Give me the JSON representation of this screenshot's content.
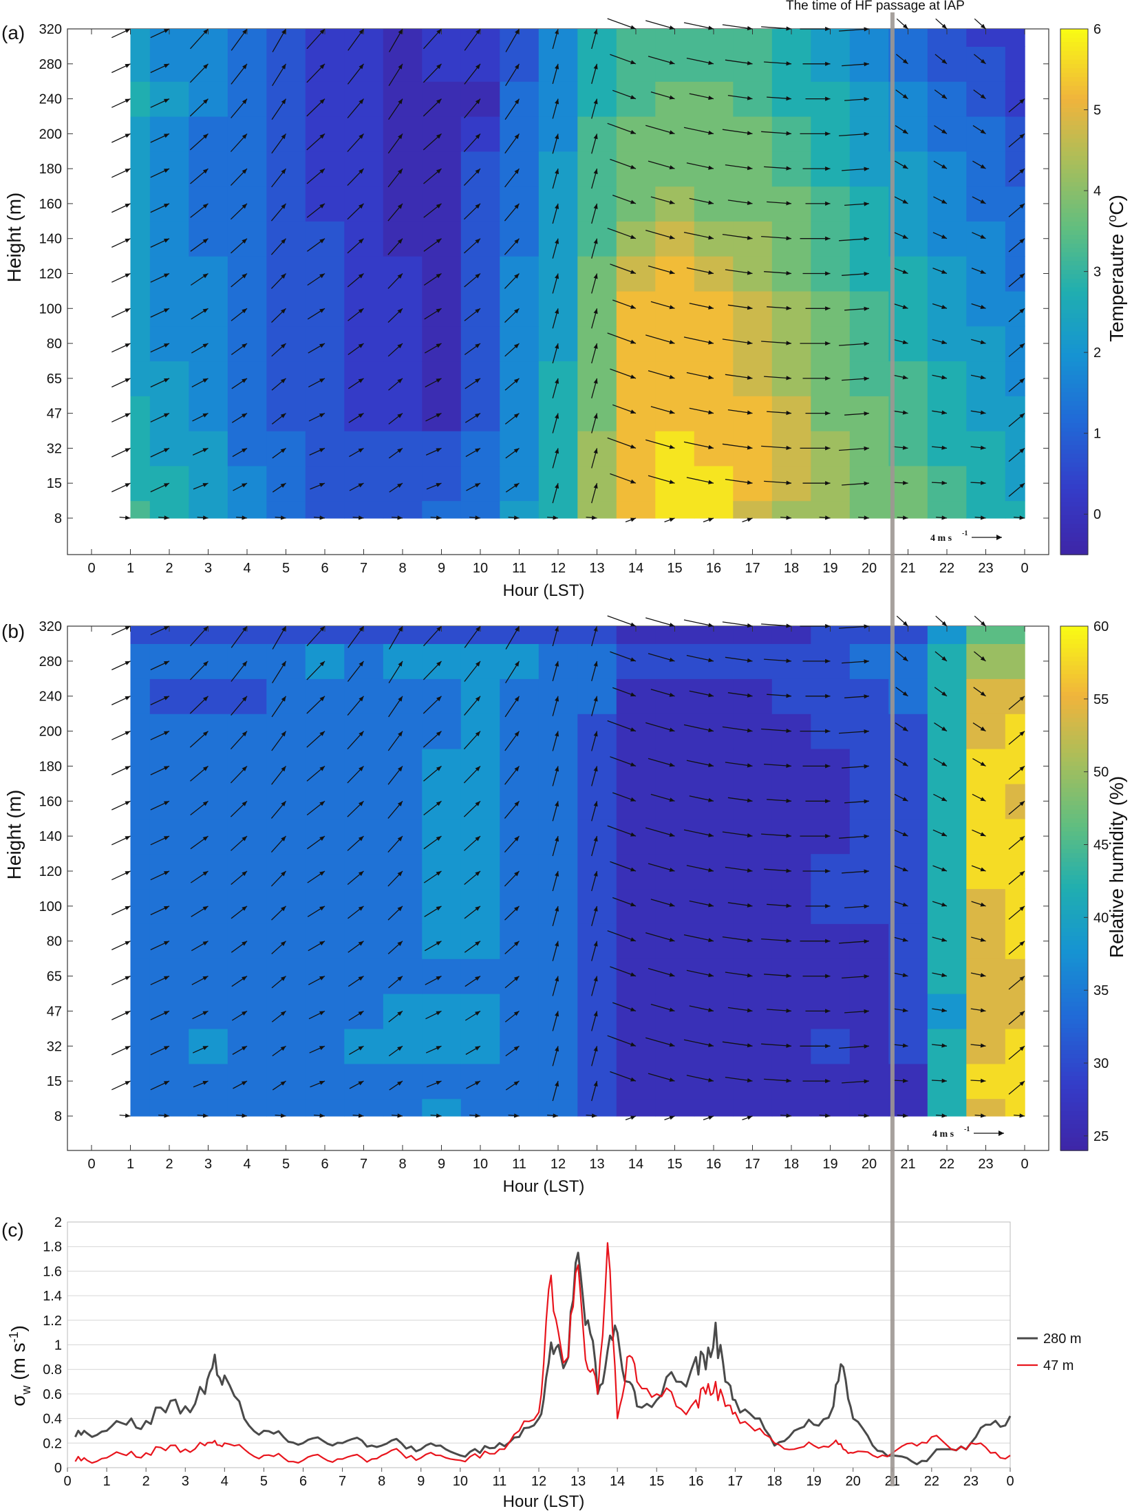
{
  "annotation": {
    "label": "The time of HF passage at IAP",
    "x_hour": 20.6
  },
  "wind_scale": {
    "label": "4 m s",
    "sup": "-1"
  },
  "panel_a": {
    "tag": "(a)",
    "xlabel": "Hour  (LST)",
    "ylabel": "Height (m)",
    "colorbar_label": "Temperautre (",
    "colorbar_label_sup": "o",
    "colorbar_label_end": "C)",
    "colorbar_ticks": [
      "6",
      "5",
      "4",
      "3",
      "2",
      "1",
      "0"
    ]
  },
  "panel_b": {
    "tag": "(b)",
    "xlabel": "Hour  (LST)",
    "ylabel": "Height (m)",
    "colorbar_label": "Relative humidity (%)",
    "colorbar_ticks": [
      "60",
      "55",
      "50",
      "45",
      "40",
      "35",
      "30",
      "25"
    ]
  },
  "panel_c": {
    "tag": "(c)",
    "xlabel": "Hour  (LST)",
    "ylabel_main": "σ",
    "ylabel_sub": "w",
    "ylabel_units": " (m s",
    "ylabel_sup": "-1",
    "ylabel_end": ")"
  },
  "chart_data": [
    {
      "type": "heatmap",
      "title": "",
      "variable": "Temperature (oC)",
      "xlabel": "Hour  (LST)",
      "ylabel": "Height (m)",
      "x_ticks": [
        "0",
        "1",
        "2",
        "3",
        "4",
        "5",
        "6",
        "7",
        "8",
        "9",
        "10",
        "11",
        "12",
        "13",
        "14",
        "15",
        "16",
        "17",
        "18",
        "19",
        "20",
        "21",
        "22",
        "23",
        "0"
      ],
      "y_ticks": [
        "8",
        "15",
        "32",
        "47",
        "65",
        "80",
        "100",
        "120",
        "140",
        "160",
        "180",
        "200",
        "240",
        "280",
        "320"
      ],
      "colorbar_range": [
        -0.5,
        6
      ],
      "hours": [
        1,
        2,
        3,
        4,
        5,
        6,
        7,
        8,
        9,
        10,
        11,
        12,
        13,
        14,
        15,
        16,
        17,
        18,
        19,
        20,
        21,
        22,
        23,
        24
      ],
      "heights": [
        "8",
        "15",
        "32",
        "47",
        "65",
        "80",
        "100",
        "120",
        "140",
        "160",
        "180",
        "200",
        "240",
        "280",
        "320"
      ],
      "values": [
        [
          3.0,
          2.7,
          2.1,
          1.6,
          1.1,
          0.8,
          0.7,
          0.8,
          1.0,
          1.4,
          2.0,
          2.9,
          4.3,
          5.4,
          5.6,
          5.5,
          4.9,
          4.4,
          4.1,
          3.8,
          3.5,
          3.1,
          2.8,
          2.5
        ],
        [
          2.8,
          2.5,
          2.0,
          1.5,
          1.0,
          0.6,
          0.5,
          0.7,
          0.9,
          1.3,
          1.9,
          2.8,
          4.1,
          5.4,
          5.7,
          5.6,
          5.1,
          4.5,
          4.1,
          3.8,
          3.5,
          3.0,
          2.7,
          2.4
        ],
        [
          2.7,
          2.4,
          2.0,
          1.4,
          1.0,
          0.6,
          0.5,
          0.6,
          0.8,
          1.2,
          1.8,
          2.7,
          4.0,
          5.3,
          5.5,
          5.4,
          5.2,
          4.5,
          4.0,
          3.7,
          3.4,
          2.9,
          2.6,
          2.3
        ],
        [
          2.5,
          2.2,
          1.8,
          1.3,
          0.9,
          0.6,
          0.4,
          0.1,
          -0.1,
          0.9,
          1.7,
          2.6,
          3.9,
          5.2,
          5.4,
          5.3,
          5.2,
          4.5,
          3.9,
          3.5,
          3.2,
          2.8,
          2.4,
          2.1
        ],
        [
          2.4,
          2.0,
          1.7,
          1.2,
          0.8,
          0.6,
          0.4,
          0.1,
          -0.1,
          0.9,
          1.6,
          2.5,
          3.8,
          5.1,
          5.3,
          5.2,
          4.9,
          4.4,
          3.8,
          3.4,
          3.0,
          2.6,
          2.2,
          1.9
        ],
        [
          2.3,
          1.9,
          1.6,
          1.1,
          0.8,
          0.6,
          0.4,
          0.0,
          -0.1,
          0.9,
          1.6,
          2.4,
          3.7,
          5.0,
          5.2,
          5.1,
          4.7,
          4.2,
          3.7,
          3.3,
          2.9,
          2.4,
          2.0,
          1.7
        ],
        [
          2.2,
          1.9,
          1.5,
          1.1,
          0.8,
          0.6,
          0.4,
          0.0,
          -0.1,
          0.9,
          1.5,
          2.4,
          3.6,
          5.0,
          5.1,
          5.0,
          4.6,
          4.0,
          3.6,
          3.1,
          2.8,
          2.2,
          1.8,
          1.5
        ],
        [
          2.2,
          1.8,
          1.5,
          1.0,
          0.7,
          0.5,
          0.3,
          0.0,
          -0.1,
          0.8,
          1.5,
          2.3,
          3.5,
          4.9,
          5.0,
          4.9,
          4.4,
          3.9,
          3.4,
          2.9,
          2.6,
          2.0,
          1.6,
          1.3
        ],
        [
          2.1,
          1.8,
          1.4,
          1.0,
          0.7,
          0.5,
          0.3,
          -0.1,
          -0.1,
          0.7,
          1.4,
          2.2,
          3.4,
          4.3,
          4.6,
          4.4,
          4.1,
          3.8,
          3.3,
          2.8,
          2.4,
          1.9,
          1.5,
          1.2
        ],
        [
          2.1,
          1.7,
          1.4,
          1.0,
          0.7,
          0.4,
          0.2,
          -0.1,
          -0.2,
          0.6,
          1.3,
          2.1,
          3.3,
          3.9,
          4.0,
          3.9,
          3.9,
          3.6,
          3.1,
          2.6,
          2.2,
          1.7,
          1.3,
          1.0
        ],
        [
          2.1,
          1.7,
          1.4,
          1.0,
          0.6,
          0.4,
          0.1,
          -0.1,
          -0.2,
          0.5,
          1.2,
          2.0,
          3.2,
          3.7,
          3.9,
          3.8,
          3.7,
          3.4,
          2.9,
          2.4,
          2.0,
          1.6,
          1.2,
          0.9
        ],
        [
          2.3,
          1.7,
          1.4,
          1.0,
          0.6,
          0.3,
          0.1,
          -0.4,
          -0.4,
          0.4,
          1.1,
          1.9,
          3.1,
          3.6,
          3.8,
          3.7,
          3.6,
          3.2,
          2.7,
          2.2,
          1.8,
          1.4,
          1.0,
          0.6
        ],
        [
          2.6,
          2.0,
          1.5,
          1.0,
          0.5,
          0.3,
          0.1,
          -0.4,
          -0.2,
          -0.4,
          1.0,
          1.8,
          2.9,
          3.4,
          3.6,
          3.6,
          3.4,
          2.9,
          2.5,
          2.0,
          1.6,
          1.1,
          0.8,
          0.3
        ],
        [
          2.4,
          1.9,
          1.5,
          1.1,
          0.5,
          0.3,
          0.1,
          -0.4,
          0.0,
          0.2,
          0.9,
          1.6,
          2.8,
          3.2,
          3.4,
          3.4,
          3.2,
          2.7,
          2.2,
          1.8,
          1.3,
          0.9,
          0.6,
          0.2
        ],
        [
          2.2,
          1.8,
          1.5,
          1.1,
          0.6,
          0.4,
          0.2,
          -0.3,
          0.1,
          0.3,
          0.8,
          1.5,
          2.6,
          3.0,
          3.2,
          3.2,
          3.0,
          2.5,
          2.0,
          1.6,
          1.1,
          0.7,
          0.4,
          0.0
        ]
      ]
    },
    {
      "type": "heatmap",
      "title": "",
      "variable": "Relative humidity (%)",
      "xlabel": "Hour  (LST)",
      "ylabel": "Height (m)",
      "x_ticks": [
        "0",
        "1",
        "2",
        "3",
        "4",
        "5",
        "6",
        "7",
        "8",
        "9",
        "10",
        "11",
        "12",
        "13",
        "14",
        "15",
        "16",
        "17",
        "18",
        "19",
        "20",
        "21",
        "22",
        "23",
        "0"
      ],
      "y_ticks": [
        "8",
        "15",
        "32",
        "47",
        "65",
        "80",
        "100",
        "120",
        "140",
        "160",
        "180",
        "200",
        "240",
        "280",
        "320"
      ],
      "colorbar_range": [
        24,
        60
      ],
      "hours": [
        1,
        2,
        3,
        4,
        5,
        6,
        7,
        8,
        9,
        10,
        11,
        12,
        13,
        14,
        15,
        16,
        17,
        18,
        19,
        20,
        21,
        22,
        23,
        24
      ],
      "heights": [
        "8",
        "15",
        "32",
        "47",
        "65",
        "80",
        "100",
        "120",
        "140",
        "160",
        "180",
        "200",
        "240",
        "280",
        "320"
      ],
      "values": [
        [
          34,
          34,
          34,
          34,
          34,
          34,
          34,
          35,
          37,
          35,
          34,
          33,
          31,
          26,
          27,
          27,
          27,
          27,
          27,
          27,
          27,
          40,
          54,
          57
        ],
        [
          34,
          34,
          34,
          34,
          34,
          34,
          34,
          34,
          35,
          34,
          34,
          32,
          31,
          25,
          26,
          27,
          27,
          27,
          27,
          27,
          27,
          40,
          56,
          58
        ],
        [
          34,
          35,
          38,
          34,
          34,
          34,
          36,
          37,
          37,
          37,
          35,
          32,
          31,
          26,
          27,
          27,
          27,
          27,
          30,
          27,
          28,
          40,
          55,
          59
        ],
        [
          34,
          34,
          35,
          34,
          34,
          34,
          35,
          36,
          37,
          36,
          35,
          32,
          31,
          26,
          27,
          27,
          27,
          27,
          27,
          27,
          28,
          39,
          54,
          55
        ],
        [
          34,
          34,
          34,
          34,
          34,
          34,
          34,
          34,
          34,
          34,
          34,
          32,
          31,
          25,
          27,
          27,
          27,
          27,
          27,
          27,
          28,
          40,
          54,
          55
        ],
        [
          34,
          34,
          34,
          34,
          34,
          34,
          34,
          34,
          37,
          37,
          34,
          33,
          31,
          27,
          27,
          27,
          27,
          27,
          27,
          27,
          29,
          41,
          55,
          56
        ],
        [
          34,
          34,
          34,
          34,
          34,
          34,
          34,
          34,
          37,
          37,
          34,
          33,
          31,
          27,
          27,
          27,
          27,
          27,
          28,
          30,
          30,
          41,
          55,
          57
        ],
        [
          34,
          34,
          34,
          34,
          34,
          34,
          34,
          34,
          37,
          37,
          35,
          33,
          31,
          27,
          27,
          27,
          27,
          27,
          28,
          30,
          31,
          41,
          56,
          58
        ],
        [
          34,
          34,
          34,
          34,
          34,
          34,
          34,
          35,
          37,
          37,
          35,
          33,
          31,
          27,
          27,
          27,
          27,
          27,
          27,
          28,
          31,
          41,
          56,
          58
        ],
        [
          34,
          34,
          34,
          34,
          34,
          34,
          34,
          35,
          37,
          37,
          35,
          33,
          31,
          27,
          27,
          27,
          27,
          27,
          27,
          28,
          31,
          41,
          56,
          55
        ],
        [
          34,
          34,
          34,
          34,
          34,
          34,
          34,
          35,
          36,
          37,
          35,
          33,
          31,
          27,
          27,
          27,
          27,
          27,
          27,
          28,
          31,
          41,
          56,
          57
        ],
        [
          32,
          32,
          33,
          33,
          33,
          34,
          34,
          35,
          35,
          37,
          35,
          33,
          31,
          27,
          27,
          27,
          27,
          27,
          28,
          30,
          31,
          41,
          55,
          57
        ],
        [
          32,
          30,
          30,
          30,
          32,
          34,
          34,
          35,
          33,
          37,
          35,
          33,
          32,
          27,
          27,
          27,
          27,
          28,
          30,
          31,
          32,
          41,
          53,
          55
        ],
        [
          34,
          34,
          34,
          34,
          34,
          37,
          35,
          37,
          36,
          37,
          36,
          35,
          33,
          30,
          30,
          30,
          30,
          30,
          30,
          32,
          33,
          41,
          48,
          50
        ],
        [
          29,
          29,
          29,
          29,
          29,
          30,
          30,
          30,
          31,
          31,
          31,
          31,
          30,
          26,
          27,
          27,
          27,
          27,
          28,
          29,
          31,
          38,
          44,
          47
        ]
      ]
    },
    {
      "type": "line",
      "title": "",
      "xlabel": "Hour  (LST)",
      "ylabel": "σw (m s-1)",
      "x_ticks": [
        "0",
        "1",
        "2",
        "3",
        "4",
        "5",
        "6",
        "7",
        "8",
        "9",
        "10",
        "11",
        "12",
        "13",
        "14",
        "15",
        "16",
        "17",
        "18",
        "19",
        "20",
        "21",
        "22",
        "23",
        "0"
      ],
      "y_ticks": [
        "0",
        "0.2",
        "0.4",
        "0.6",
        "0.8",
        "1",
        "1.2",
        "1.4",
        "1.6",
        "1.8",
        "2"
      ],
      "ylim": [
        0,
        2
      ],
      "xlim": [
        0,
        24
      ],
      "legend_position": "right",
      "x": [
        0.2,
        0.5,
        1,
        1.5,
        2,
        2.5,
        3,
        3.5,
        3.75,
        4,
        4.5,
        5,
        5.5,
        6,
        6.5,
        7,
        7.5,
        8,
        8.5,
        9,
        9.5,
        10,
        10.5,
        11,
        11.5,
        12,
        12.25,
        12.5,
        12.75,
        13,
        13.25,
        13.5,
        13.75,
        14,
        14.25,
        14.5,
        15,
        15.5,
        16,
        16.25,
        16.5,
        16.75,
        17,
        17.5,
        18,
        18.5,
        19,
        19.5,
        19.75,
        20,
        20.5,
        21,
        21.5,
        22,
        22.5,
        23,
        23.5,
        24
      ],
      "series": [
        {
          "name": "280 m",
          "color": "#4a4a4a",
          "values": [
            0.25,
            0.28,
            0.3,
            0.35,
            0.38,
            0.45,
            0.5,
            0.6,
            0.92,
            0.75,
            0.4,
            0.3,
            0.25,
            0.2,
            0.22,
            0.2,
            0.22,
            0.18,
            0.2,
            0.15,
            0.18,
            0.1,
            0.12,
            0.2,
            0.25,
            0.4,
            0.85,
            1.0,
            0.9,
            1.75,
            1.2,
            0.6,
            0.95,
            1.1,
            0.7,
            0.5,
            0.55,
            0.7,
            0.9,
            0.8,
            1.18,
            0.7,
            0.55,
            0.4,
            0.18,
            0.3,
            0.35,
            0.5,
            0.82,
            0.4,
            0.18,
            0.1,
            0.05,
            0.1,
            0.15,
            0.2,
            0.35,
            0.42
          ]
        },
        {
          "name": "47 m",
          "color": "#e8141c",
          "values": [
            0.05,
            0.06,
            0.08,
            0.1,
            0.12,
            0.14,
            0.15,
            0.18,
            0.22,
            0.2,
            0.15,
            0.1,
            0.08,
            0.06,
            0.08,
            0.07,
            0.08,
            0.1,
            0.12,
            0.08,
            0.1,
            0.06,
            0.08,
            0.15,
            0.3,
            0.45,
            1.45,
            1.1,
            0.9,
            1.65,
            0.8,
            0.6,
            1.83,
            0.4,
            0.9,
            0.7,
            0.6,
            0.5,
            0.55,
            0.6,
            0.7,
            0.5,
            0.45,
            0.3,
            0.2,
            0.15,
            0.18,
            0.2,
            0.15,
            0.12,
            0.1,
            0.12,
            0.2,
            0.25,
            0.15,
            0.2,
            0.12,
            0.1
          ]
        }
      ]
    }
  ]
}
